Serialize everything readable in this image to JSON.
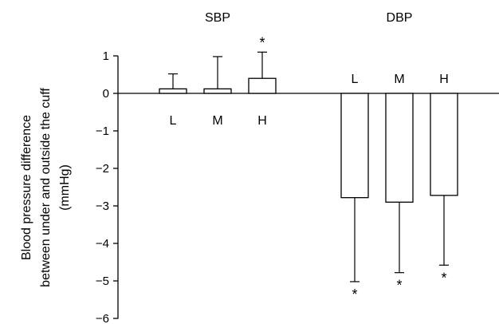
{
  "chart_data": {
    "type": "bar",
    "ylabel": [
      "Blood pressure difference",
      "between under and outside the cuff",
      "(mmHg)"
    ],
    "ylim": [
      -6,
      1
    ],
    "yticks": [
      1,
      0,
      -1,
      -2,
      -3,
      -4,
      -5,
      -6
    ],
    "ytick_labels": [
      "1",
      "0",
      "−1",
      "−2",
      "−3",
      "−4",
      "−5",
      "−6"
    ],
    "groups": [
      {
        "name": "SBP",
        "categories": [
          "L",
          "M",
          "H"
        ],
        "values": [
          0.12,
          0.12,
          0.4
        ],
        "errors": [
          0.4,
          0.86,
          0.7
        ],
        "significant": [
          false,
          false,
          true
        ]
      },
      {
        "name": "DBP",
        "categories": [
          "L",
          "M",
          "H"
        ],
        "values": [
          -2.78,
          -2.9,
          -2.72
        ],
        "errors": [
          2.24,
          1.88,
          1.86
        ],
        "significant": [
          true,
          true,
          true
        ]
      }
    ],
    "significance_marker": "*",
    "grid": false,
    "colors": {
      "bar_fill": "#ffffff",
      "stroke": "#000000"
    }
  }
}
